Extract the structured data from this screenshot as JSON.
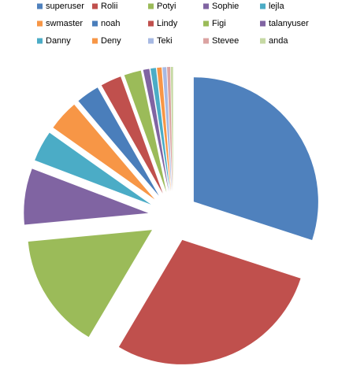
{
  "chart_data": {
    "type": "pie",
    "categories": [
      "superuser",
      "Rolii",
      "Potyi",
      "Sophie",
      "lejla",
      "swmaster",
      "noah",
      "Lindy",
      "Figi",
      "talanyuser",
      "Danny",
      "Deny",
      "Teki",
      "Stevee",
      "anda"
    ],
    "values": [
      30,
      28.5,
      15,
      7.3,
      4,
      4,
      3,
      2.7,
      2.2,
      0.8,
      0.7,
      0.6,
      0.5,
      0.4,
      0.3
    ],
    "colors": [
      "#4f81bd",
      "#c0504d",
      "#9bbb59",
      "#8064a2",
      "#4bacc6",
      "#f79646",
      "#4a7ebb",
      "#c0504d",
      "#9bbb59",
      "#8064a2",
      "#4bacc6",
      "#f79646",
      "#a7b9e3",
      "#dba3a2",
      "#c6d9a4"
    ],
    "legend": "top"
  }
}
